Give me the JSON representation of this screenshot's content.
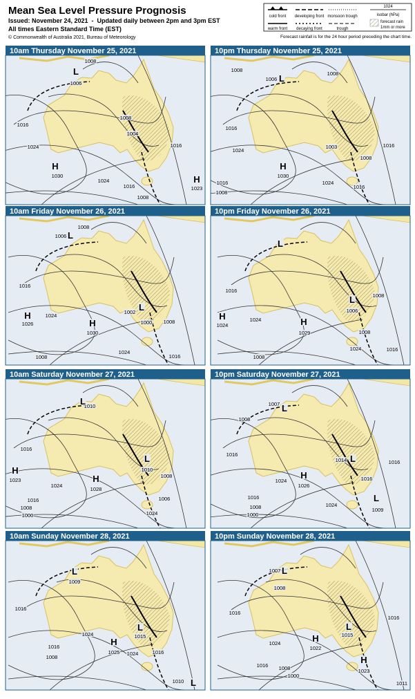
{
  "header": {
    "title": "Mean Sea Level Pressure Prognosis",
    "issued": "Issued: November 24, 2021  -  Updated daily between 2pm and 3pm EST",
    "times": "All times Eastern Standard Time (EST)",
    "copyright": "© Commonwealth of Australia 2021, Bureau of Meteorology"
  },
  "legend": {
    "items": [
      "cold front",
      "developing front",
      "monsoon trough",
      "1024",
      "isobar (hPa)",
      "warm front",
      "decaying front",
      "trough",
      "forecast rain",
      "1mm or more"
    ],
    "note": "Forecast rainfall is for the 24 hour period preceding the chart time."
  },
  "panels": [
    {
      "title": "10am Thursday November 25, 2021",
      "labels": [
        "1008",
        "L",
        "1006",
        "1016",
        "1024",
        "H",
        "1030",
        "1024",
        "1016",
        "1008",
        "1008",
        "1004",
        "1016",
        "H",
        "1023"
      ]
    },
    {
      "title": "10pm Thursday November 25, 2021",
      "labels": [
        "1008",
        "1008",
        "L",
        "1006",
        "1016",
        "1024",
        "H",
        "1030",
        "1003",
        "1008",
        "1016",
        "1024",
        "1016",
        "1016",
        "1008"
      ]
    },
    {
      "title": "10am Friday November 26, 2021",
      "labels": [
        "1008",
        "1006",
        "L",
        "1016",
        "H",
        "1026",
        "1024",
        "H",
        "1030",
        "1024",
        "1016",
        "1008",
        "1002",
        "L",
        "1000",
        "1008"
      ]
    },
    {
      "title": "10pm Friday November 26, 2021",
      "labels": [
        "L",
        "1008",
        "1016",
        "H",
        "1024",
        "1024",
        "H",
        "1029",
        "L",
        "1006",
        "1008",
        "1024",
        "1016",
        "1008"
      ]
    },
    {
      "title": "10am Saturday November 27, 2021",
      "labels": [
        "1010",
        "L",
        "1016",
        "H",
        "1023",
        "1024",
        "H",
        "1028",
        "L",
        "1010",
        "1008",
        "1006",
        "1016",
        "1008",
        "1000",
        "1024"
      ]
    },
    {
      "title": "10pm Saturday November 27, 2021",
      "labels": [
        "1007",
        "L",
        "1008",
        "1016",
        "L",
        "1014",
        "1016",
        "H",
        "1026",
        "1024",
        "1016",
        "L",
        "1009",
        "1024",
        "1016",
        "1008",
        "1000"
      ]
    },
    {
      "title": "10am Sunday November 28, 2021",
      "labels": [
        "L",
        "1009",
        "1016",
        "1024",
        "H",
        "1025",
        "1024",
        "L",
        "1015",
        "1016",
        "1008",
        "1016",
        "L",
        "1010"
      ]
    },
    {
      "title": "10pm Sunday November 28, 2021",
      "labels": [
        "1007",
        "L",
        "1008",
        "1016",
        "L",
        "1015",
        "1016",
        "H",
        "1022",
        "1024",
        "H",
        "1023",
        "1016",
        "1008",
        "1000",
        "1011"
      ]
    }
  ]
}
